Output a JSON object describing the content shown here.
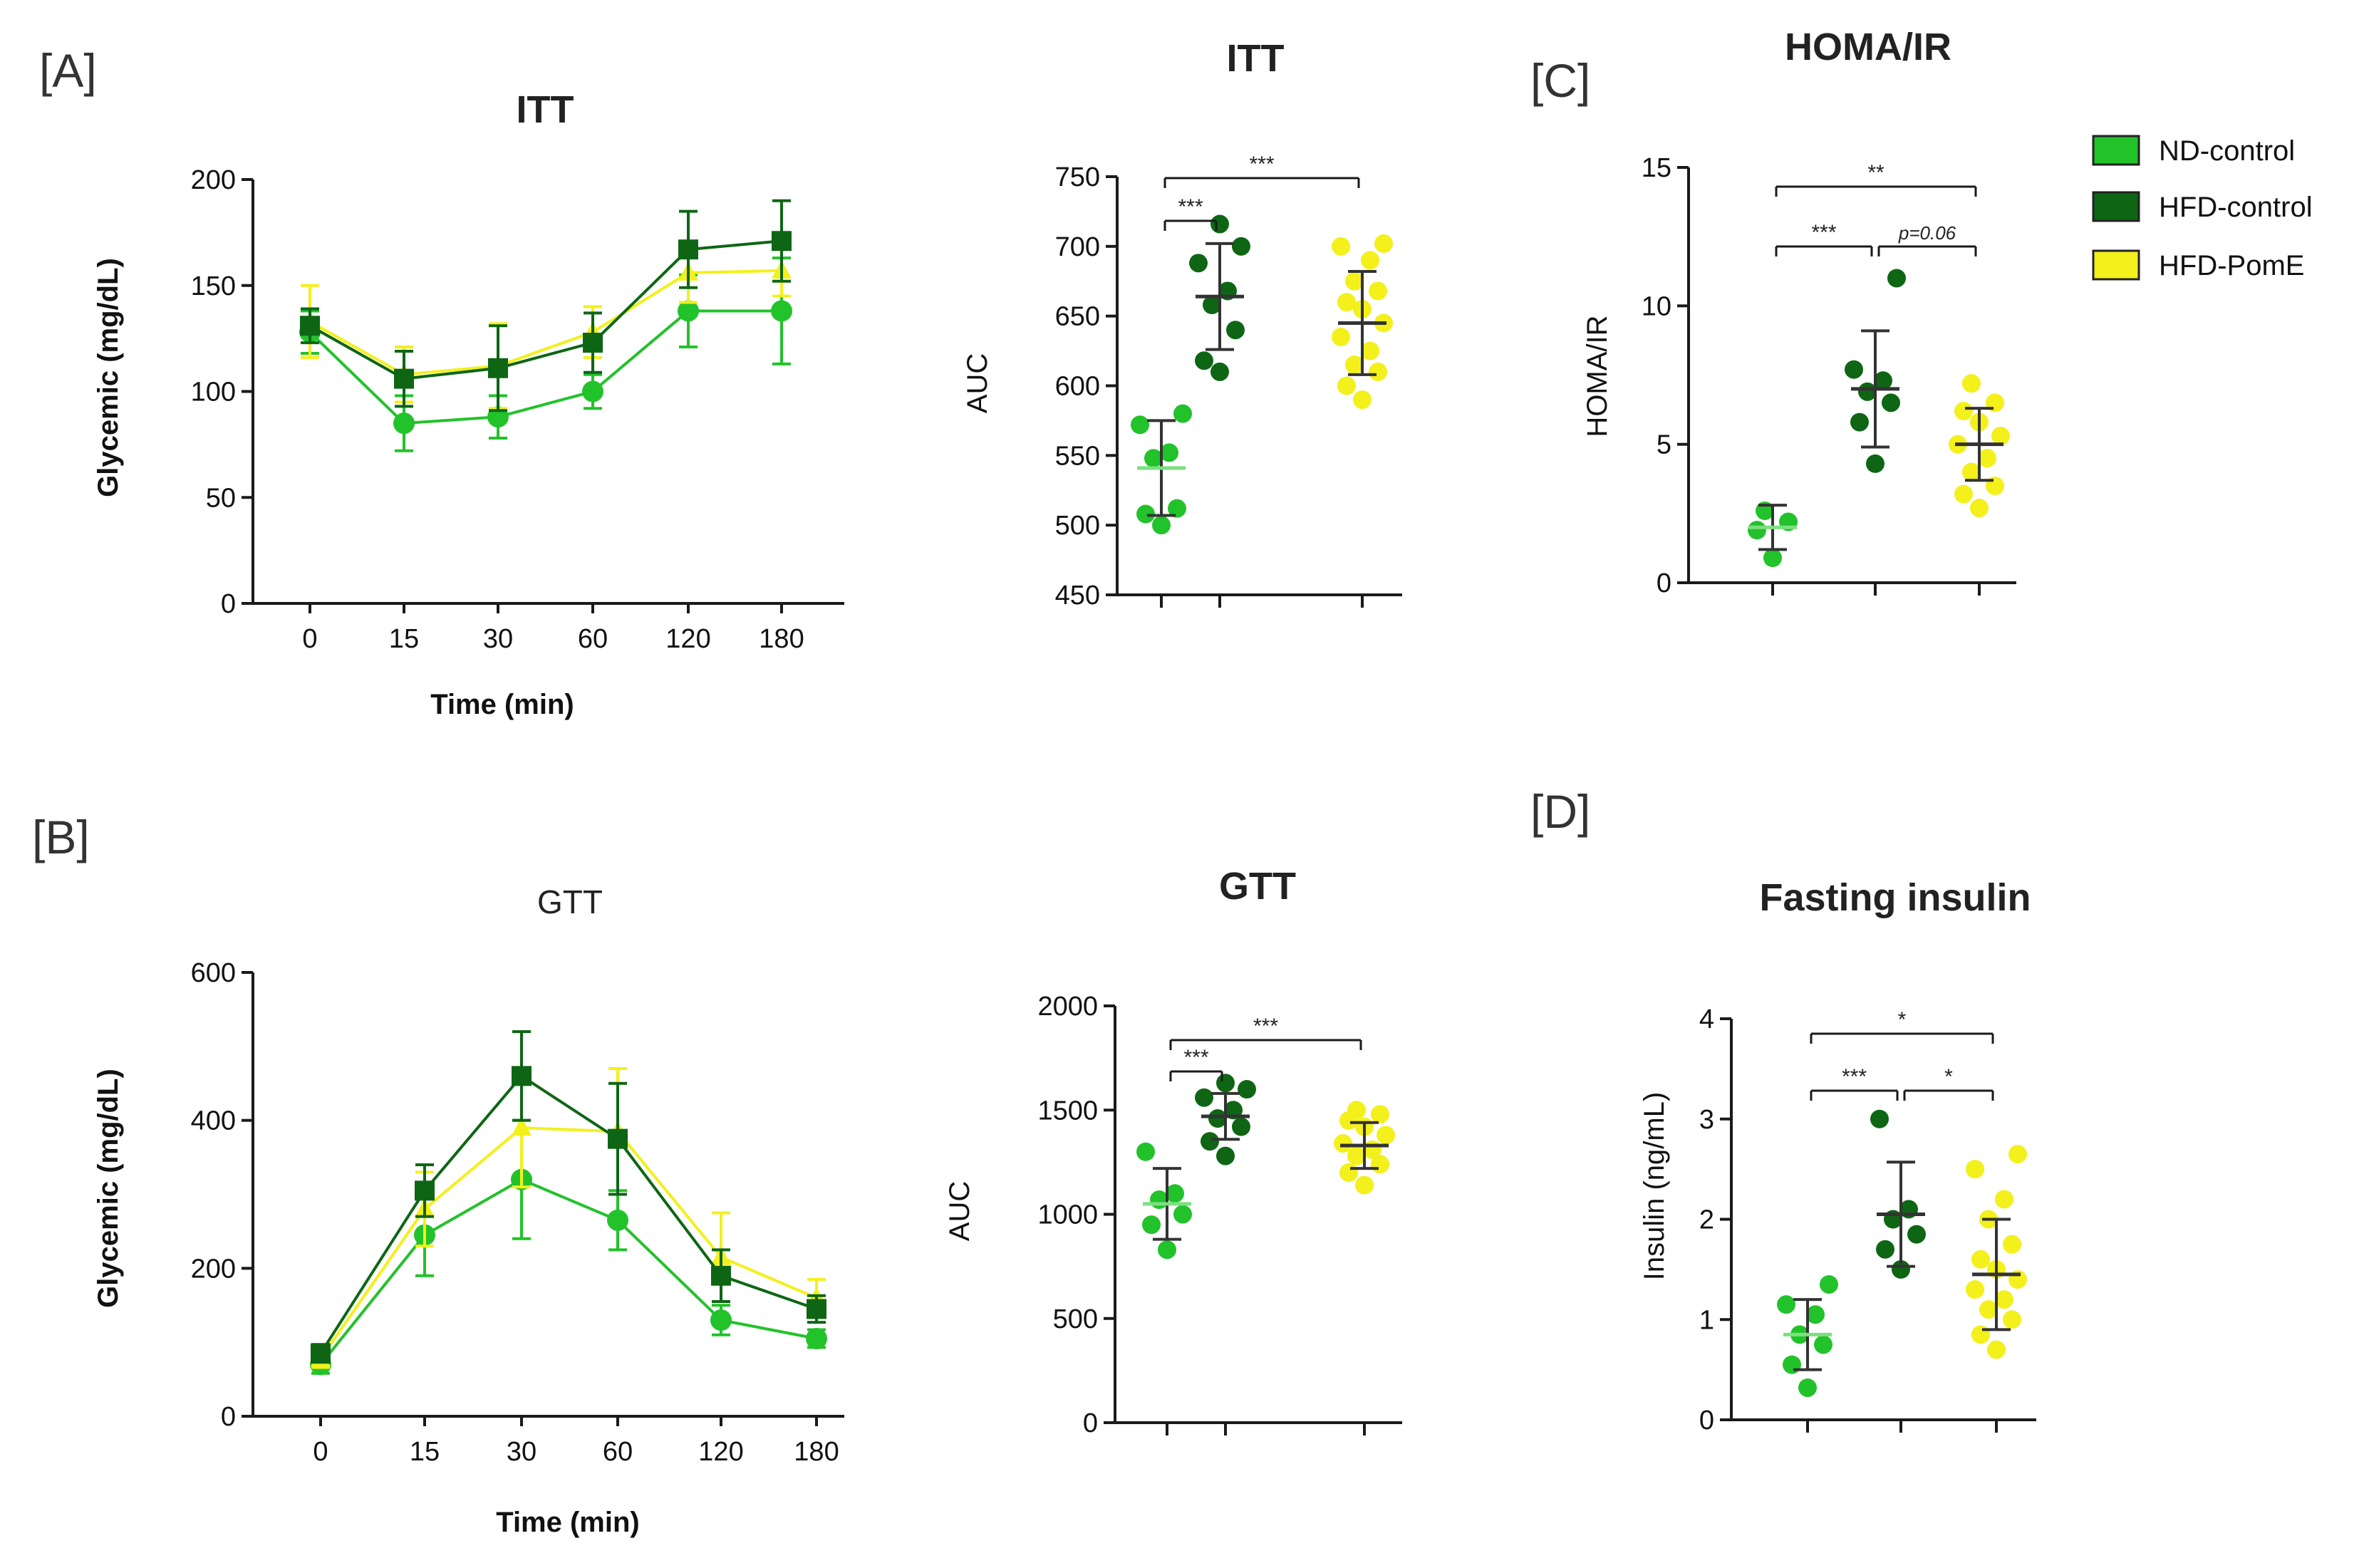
{
  "colors": {
    "nd_control": "#22c22a",
    "hfd_control": "#0e6614",
    "hfd_pome": "#f3f01c",
    "axis": "#1a1a1a",
    "errorbar": "#333333"
  },
  "legend": [
    {
      "label": "ND-control",
      "color": "#22c22a"
    },
    {
      "label": "HFD-control",
      "color": "#0e6614"
    },
    {
      "label": "HFD-PomE",
      "color": "#f3f01c"
    }
  ],
  "chart_data": [
    {
      "id": "itt_curve",
      "panel": "[A]",
      "type": "line",
      "title": "ITT",
      "xlabel": "Time (min)",
      "ylabel": "Glycemic (mg/dL)",
      "categories": [
        "0",
        "15",
        "30",
        "60",
        "120",
        "180"
      ],
      "ylim": [
        0,
        200
      ],
      "yticks": [
        0,
        50,
        100,
        150,
        200
      ],
      "series": [
        {
          "name": "ND-control",
          "marker": "circle",
          "values": [
            128,
            85,
            88,
            100,
            138,
            138
          ],
          "errors": [
            10,
            13,
            10,
            8,
            17,
            25
          ]
        },
        {
          "name": "HFD-PomE",
          "marker": "triangle",
          "values": [
            133,
            108,
            112,
            128,
            156,
            157
          ],
          "errors": [
            17,
            13,
            20,
            12,
            14,
            12
          ]
        },
        {
          "name": "HFD-control",
          "marker": "square",
          "values": [
            131,
            106,
            111,
            123,
            167,
            171
          ],
          "errors": [
            8,
            13,
            20,
            14,
            18,
            19
          ]
        }
      ]
    },
    {
      "id": "itt_auc",
      "type": "scatter",
      "title": "ITT",
      "ylabel": "AUC",
      "ylim": [
        450,
        750
      ],
      "yticks": [
        450,
        500,
        550,
        600,
        650,
        700,
        750
      ],
      "groups": [
        {
          "name": "ND-control",
          "points": [
            500,
            508,
            512,
            548,
            552,
            572,
            580
          ],
          "mean": 541,
          "sd": 34
        },
        {
          "name": "HFD-control",
          "points": [
            610,
            618,
            640,
            658,
            668,
            688,
            700,
            716
          ],
          "mean": 664,
          "sd": 38
        },
        {
          "name": "HFD-PomE",
          "points": [
            590,
            600,
            610,
            615,
            625,
            635,
            645,
            655,
            660,
            668,
            675,
            690,
            700,
            702
          ],
          "mean": 645,
          "sd": 37
        }
      ],
      "significance": [
        {
          "from": 0,
          "to": 1,
          "label": "***",
          "level": 0
        },
        {
          "from": 0,
          "to": 2,
          "label": "***",
          "level": 1
        }
      ]
    },
    {
      "id": "homa_ir",
      "panel": "[C]",
      "type": "scatter",
      "title": "HOMA/IR",
      "ylabel": "HOMA/IR",
      "ylim": [
        0,
        15
      ],
      "yticks": [
        0,
        5,
        10,
        15
      ],
      "groups": [
        {
          "name": "ND-control",
          "points": [
            0.9,
            1.9,
            2.2,
            2.6
          ],
          "mean": 2.0,
          "sd": 0.8
        },
        {
          "name": "HFD-control",
          "points": [
            4.3,
            5.8,
            6.5,
            6.9,
            7.3,
            7.7,
            11.0
          ],
          "mean": 7.0,
          "sd": 2.1
        },
        {
          "name": "HFD-PomE",
          "points": [
            2.7,
            3.2,
            3.5,
            4.0,
            4.5,
            5.0,
            5.3,
            5.8,
            6.2,
            6.5,
            7.2
          ],
          "mean": 5.0,
          "sd": 1.3
        }
      ],
      "significance": [
        {
          "from": 0,
          "to": 1,
          "label": "***",
          "level": 0,
          "italic": false
        },
        {
          "from": 1,
          "to": 2,
          "label": "p=0.06",
          "level": 0,
          "italic": true
        },
        {
          "from": 0,
          "to": 2,
          "label": "**",
          "level": 1,
          "italic": false
        }
      ]
    },
    {
      "id": "gtt_curve",
      "panel": "[B]",
      "type": "line",
      "title": "GTT",
      "xlabel": "Time (min)",
      "ylabel": "Glycemic (mg/dL)",
      "categories": [
        "0",
        "15",
        "30",
        "60",
        "120",
        "180"
      ],
      "ylim": [
        0,
        600
      ],
      "yticks": [
        0,
        200,
        400,
        600
      ],
      "series": [
        {
          "name": "ND-control",
          "marker": "circle",
          "values": [
            70,
            245,
            320,
            265,
            130,
            105
          ],
          "errors": [
            12,
            55,
            80,
            40,
            20,
            12
          ]
        },
        {
          "name": "HFD-PomE",
          "marker": "triangle",
          "values": [
            78,
            280,
            390,
            385,
            215,
            160
          ],
          "errors": [
            12,
            50,
            80,
            85,
            60,
            25
          ]
        },
        {
          "name": "HFD-control",
          "marker": "square",
          "values": [
            85,
            305,
            460,
            375,
            190,
            145
          ],
          "errors": [
            12,
            35,
            60,
            75,
            35,
            18
          ]
        }
      ]
    },
    {
      "id": "gtt_auc",
      "type": "scatter",
      "title": "GTT",
      "ylabel": "AUC",
      "ylim": [
        0,
        2000
      ],
      "yticks": [
        0,
        500,
        1000,
        1500,
        2000
      ],
      "groups": [
        {
          "name": "ND-control",
          "points": [
            830,
            950,
            1000,
            1070,
            1100,
            1300
          ],
          "mean": 1050,
          "sd": 170
        },
        {
          "name": "HFD-control",
          "points": [
            1280,
            1350,
            1420,
            1460,
            1500,
            1560,
            1600,
            1630
          ],
          "mean": 1470,
          "sd": 110
        },
        {
          "name": "HFD-PomE",
          "points": [
            1140,
            1200,
            1240,
            1280,
            1310,
            1340,
            1380,
            1420,
            1450,
            1480,
            1500
          ],
          "mean": 1330,
          "sd": 110
        }
      ],
      "significance": [
        {
          "from": 0,
          "to": 1,
          "label": "***",
          "level": 0
        },
        {
          "from": 0,
          "to": 2,
          "label": "***",
          "level": 1
        }
      ]
    },
    {
      "id": "fasting_insulin",
      "panel": "[D]",
      "type": "scatter",
      "title": "Fasting insulin",
      "ylabel": "Insulin (ng/mL)",
      "ylim": [
        0,
        4
      ],
      "yticks": [
        0,
        1,
        2,
        3,
        4
      ],
      "groups": [
        {
          "name": "ND-control",
          "points": [
            0.32,
            0.55,
            0.75,
            0.85,
            1.05,
            1.15,
            1.35
          ],
          "mean": 0.85,
          "sd": 0.35
        },
        {
          "name": "HFD-control",
          "points": [
            1.5,
            1.7,
            1.85,
            2.0,
            2.1,
            3.0
          ],
          "mean": 2.05,
          "sd": 0.52
        },
        {
          "name": "HFD-PomE",
          "points": [
            0.7,
            0.85,
            1.0,
            1.1,
            1.2,
            1.3,
            1.4,
            1.5,
            1.6,
            1.75,
            2.0,
            2.2,
            2.5,
            2.65
          ],
          "mean": 1.45,
          "sd": 0.55
        }
      ],
      "significance": [
        {
          "from": 0,
          "to": 1,
          "label": "***",
          "level": 0
        },
        {
          "from": 1,
          "to": 2,
          "label": "*",
          "level": 0
        },
        {
          "from": 0,
          "to": 2,
          "label": "*",
          "level": 1
        }
      ]
    }
  ]
}
